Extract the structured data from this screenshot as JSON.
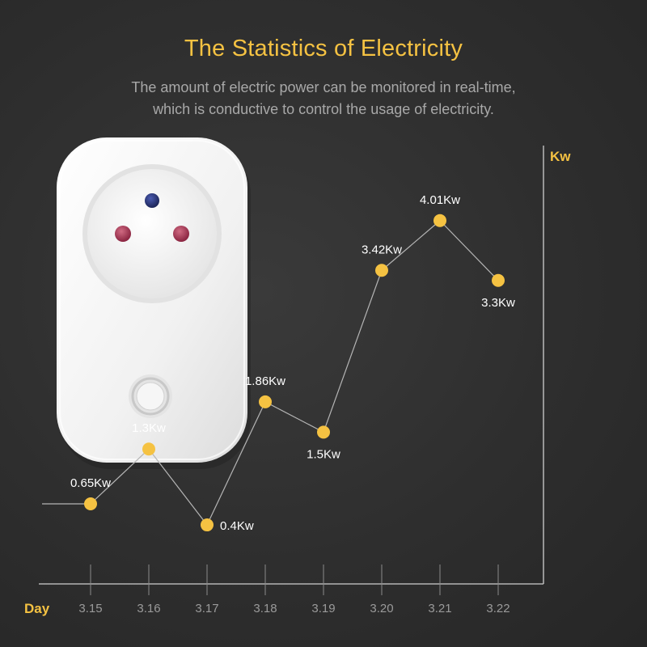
{
  "header": {
    "title": "The Statistics of Electricity",
    "subtitle_line1": "The amount of electric power can be monitored in real-time,",
    "subtitle_line2": "which is conductive to control the usage of electricity."
  },
  "product": {
    "name": "smart-plug-socket",
    "body_color": "#f4f4f4",
    "ground_pin_color": "#2c3a80",
    "socket_hole_color": "#b13a55"
  },
  "colors": {
    "accent": "#f5c242",
    "line": "#b5b5b5",
    "axis": "#cfcfcf",
    "label": "#ffffff",
    "tick_label": "#9a9a9a"
  },
  "chart_data": {
    "type": "line",
    "title": "The Statistics of Electricity",
    "xlabel": "Day",
    "ylabel": "Kw",
    "categories": [
      "3.15",
      "3.16",
      "3.17",
      "3.18",
      "3.19",
      "3.20",
      "3.21",
      "3.22"
    ],
    "values": [
      0.65,
      1.3,
      0.4,
      1.86,
      1.5,
      3.42,
      4.01,
      3.3
    ],
    "data_labels": [
      "0.65Kw",
      "1.3Kw",
      "0.4Kw",
      "1.86Kw",
      "1.5Kw",
      "3.42Kw",
      "4.01Kw",
      "3.3Kw"
    ],
    "label_positions": [
      "above",
      "above",
      "right",
      "above",
      "below",
      "above",
      "above",
      "below"
    ],
    "ylim": [
      -0.3,
      4.9
    ],
    "grid": false,
    "legend": "none"
  }
}
